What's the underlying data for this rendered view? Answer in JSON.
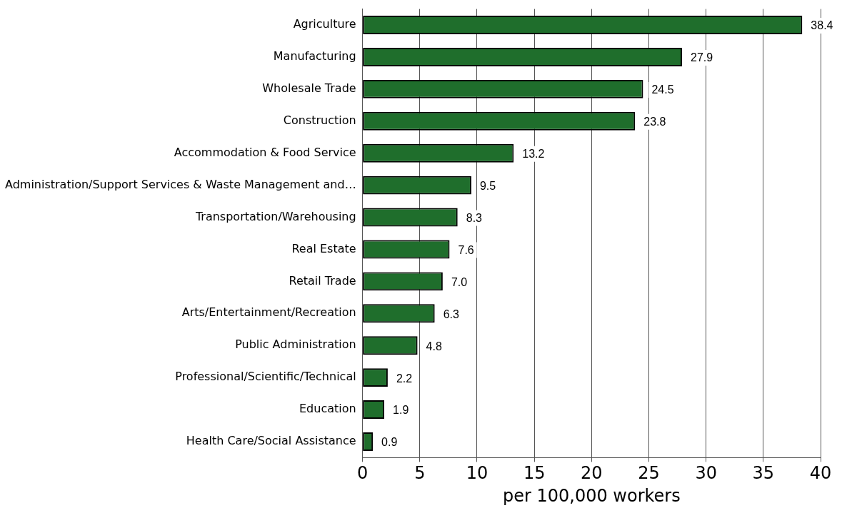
{
  "chart_data": {
    "type": "bar",
    "orientation": "horizontal",
    "xlabel": "per 100,000 workers",
    "categories": [
      "Agriculture",
      "Manufacturing",
      "Wholesale Trade",
      "Construction",
      "Accommodation & Food Service",
      "Administration/Support Services & Waste Management and…",
      "Transportation/Warehousing",
      "Real Estate",
      "Retail Trade",
      "Arts/Entertainment/Recreation",
      "Public Administration",
      "Professional/Scientific/Technical",
      "Education",
      "Health Care/Social Assistance"
    ],
    "values": [
      38.4,
      27.9,
      24.5,
      23.8,
      13.2,
      9.5,
      8.3,
      7.6,
      7.0,
      6.3,
      4.8,
      2.2,
      1.9,
      0.9
    ],
    "value_labels": [
      "38.4",
      "27.9",
      "24.5",
      "23.8",
      "13.2",
      "9.5",
      "8.3",
      "7.6",
      "7.0",
      "6.3",
      "4.8",
      "2.2",
      "1.9",
      "0.9"
    ],
    "color": "#1f6e2c",
    "xlim": [
      0,
      40
    ],
    "xticks": [
      0,
      5,
      10,
      15,
      20,
      25,
      30,
      35,
      40
    ],
    "grid": "x",
    "legend": false
  }
}
